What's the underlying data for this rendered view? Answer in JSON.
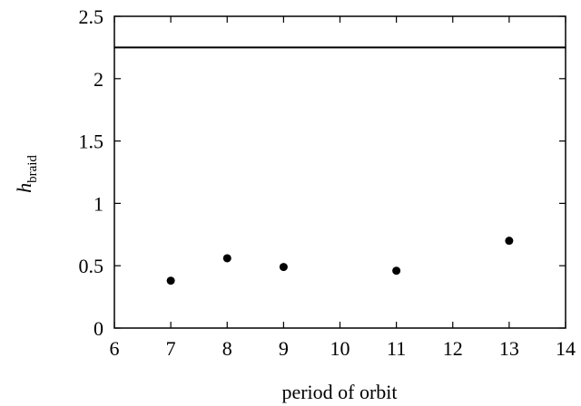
{
  "chart_data": {
    "type": "scatter",
    "xlabel": "period of orbit",
    "ylabel_main": "h",
    "ylabel_sub": "braid",
    "xlim": [
      6,
      14
    ],
    "ylim": [
      0,
      2.5
    ],
    "x_ticks": [
      6,
      7,
      8,
      9,
      10,
      11,
      12,
      13,
      14
    ],
    "y_ticks": [
      0,
      0.5,
      1,
      1.5,
      2,
      2.5
    ],
    "x_tick_labels": [
      "6",
      "7",
      "8",
      "9",
      "10",
      "11",
      "12",
      "13",
      "14"
    ],
    "y_tick_labels": [
      "0",
      "0.5",
      "1",
      "1.5",
      "2",
      "2.5"
    ],
    "points": [
      {
        "x": 7,
        "y": 0.38
      },
      {
        "x": 8,
        "y": 0.56
      },
      {
        "x": 9,
        "y": 0.49
      },
      {
        "x": 11,
        "y": 0.46
      },
      {
        "x": 13,
        "y": 0.7
      }
    ],
    "reference_line_y": 2.25,
    "grid": false,
    "legend": "none",
    "colors": {
      "points": "#000000",
      "line": "#000000"
    }
  }
}
